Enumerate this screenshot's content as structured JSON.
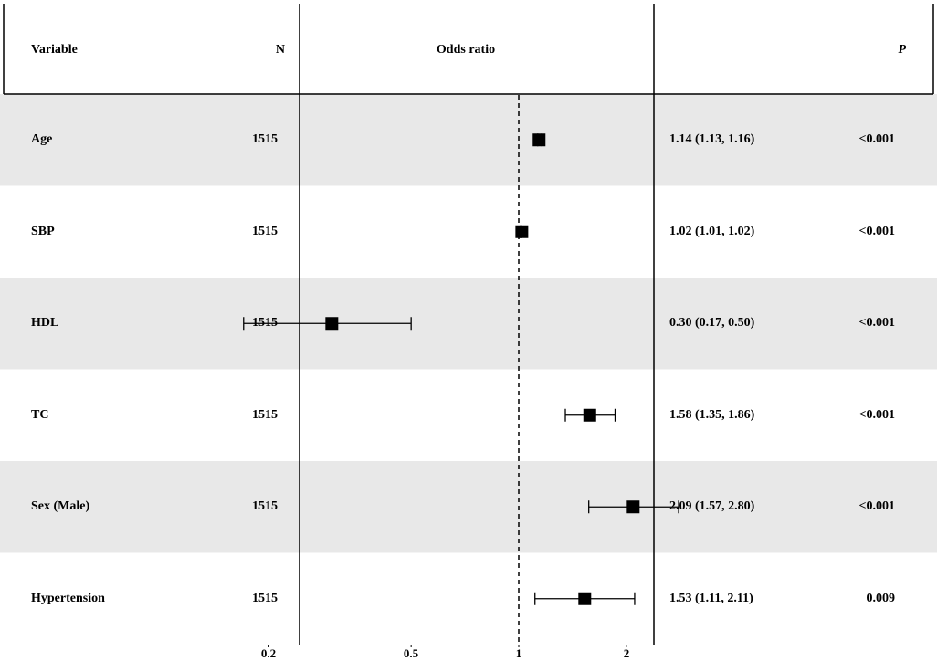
{
  "header": {
    "variable": "Variable",
    "n": "N",
    "odds_ratio": "Odds ratio",
    "p": "P"
  },
  "rows": [
    {
      "variable": "Age",
      "n": "1515",
      "or_ci": "1.14 (1.13, 1.16)",
      "p": "<0.001"
    },
    {
      "variable": "SBP",
      "n": "1515",
      "or_ci": "1.02 (1.01, 1.02)",
      "p": "<0.001"
    },
    {
      "variable": "HDL",
      "n": "1515",
      "or_ci": "0.30 (0.17, 0.50)",
      "p": "<0.001"
    },
    {
      "variable": "TC",
      "n": "1515",
      "or_ci": "1.58 (1.35, 1.86)",
      "p": "<0.001"
    },
    {
      "variable": "Sex (Male)",
      "n": "1515",
      "or_ci": "2.09 (1.57, 2.80)",
      "p": "<0.001"
    },
    {
      "variable": "Hypertension",
      "n": "1515",
      "or_ci": "1.53 (1.11, 2.11)",
      "p": "0.009"
    }
  ],
  "colors": {
    "shade": "#e8e8e8",
    "marker": "#000000"
  },
  "chart_data": {
    "type": "forest",
    "xscale": "log",
    "reference_line": 1,
    "xlim": [
      0.16,
      3.2
    ],
    "xticks": [
      {
        "value": 0.2,
        "label": "0.2"
      },
      {
        "value": 0.5,
        "label": "0.5"
      },
      {
        "value": 1,
        "label": "1"
      },
      {
        "value": 2,
        "label": "2"
      }
    ],
    "series": [
      {
        "category": "Age",
        "or": 1.14,
        "lower": 1.13,
        "upper": 1.16
      },
      {
        "category": "SBP",
        "or": 1.02,
        "lower": 1.01,
        "upper": 1.02
      },
      {
        "category": "HDL",
        "or": 0.3,
        "lower": 0.17,
        "upper": 0.5
      },
      {
        "category": "TC",
        "or": 1.58,
        "lower": 1.35,
        "upper": 1.86
      },
      {
        "category": "Sex (Male)",
        "or": 2.09,
        "lower": 1.57,
        "upper": 2.8
      },
      {
        "category": "Hypertension",
        "or": 1.53,
        "lower": 1.11,
        "upper": 2.11
      }
    ]
  }
}
